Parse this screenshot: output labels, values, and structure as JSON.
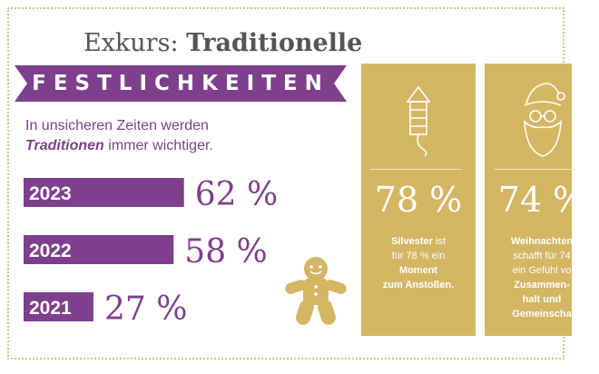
{
  "header": {
    "title_prefix": "Exkurs:",
    "title_bold": "Traditionelle",
    "banner": "FESTLICHKEITEN"
  },
  "subtitle": {
    "line1": "In unsicheren Zeiten werden",
    "line2_em": "Traditionen",
    "line2_rest": " immer wichtiger."
  },
  "chart_data": {
    "type": "bar",
    "orientation": "horizontal",
    "categories": [
      "2023",
      "2022",
      "2021"
    ],
    "values": [
      62,
      58,
      27
    ],
    "value_labels": [
      "62 %",
      "58 %",
      "27 %"
    ],
    "xlim": [
      0,
      100
    ],
    "grid": false
  },
  "cards": [
    {
      "icon": "firework-rocket-icon",
      "percent": "78 %",
      "lines": [
        {
          "text": "Silvester",
          "bold": true,
          "suffix": " ist"
        },
        {
          "text": "für 78 % ein",
          "bold": false,
          "suffix": ""
        },
        {
          "text": "Moment",
          "bold": true,
          "suffix": ""
        },
        {
          "text": "zum Anstoßen.",
          "bold": true,
          "suffix": ""
        }
      ]
    },
    {
      "icon": "santa-claus-icon",
      "percent": "74 %",
      "lines": [
        {
          "text": "Weihnachten",
          "bold": true,
          "suffix": ""
        },
        {
          "text": "schafft für 74",
          "bold": false,
          "suffix": ""
        },
        {
          "text": "ein Gefühl vo",
          "bold": false,
          "suffix": ""
        },
        {
          "text": "Zusammen-",
          "bold": true,
          "suffix": ""
        },
        {
          "text": "halt und",
          "bold": true,
          "suffix": ""
        },
        {
          "text": "Gemeinscha",
          "bold": true,
          "suffix": ""
        }
      ]
    }
  ],
  "colors": {
    "purple": "#7e3f8c",
    "gold": "#d4b663",
    "gold_light": "#d8c17a"
  },
  "decor": {
    "gingerbread": "gingerbread-man-icon"
  }
}
